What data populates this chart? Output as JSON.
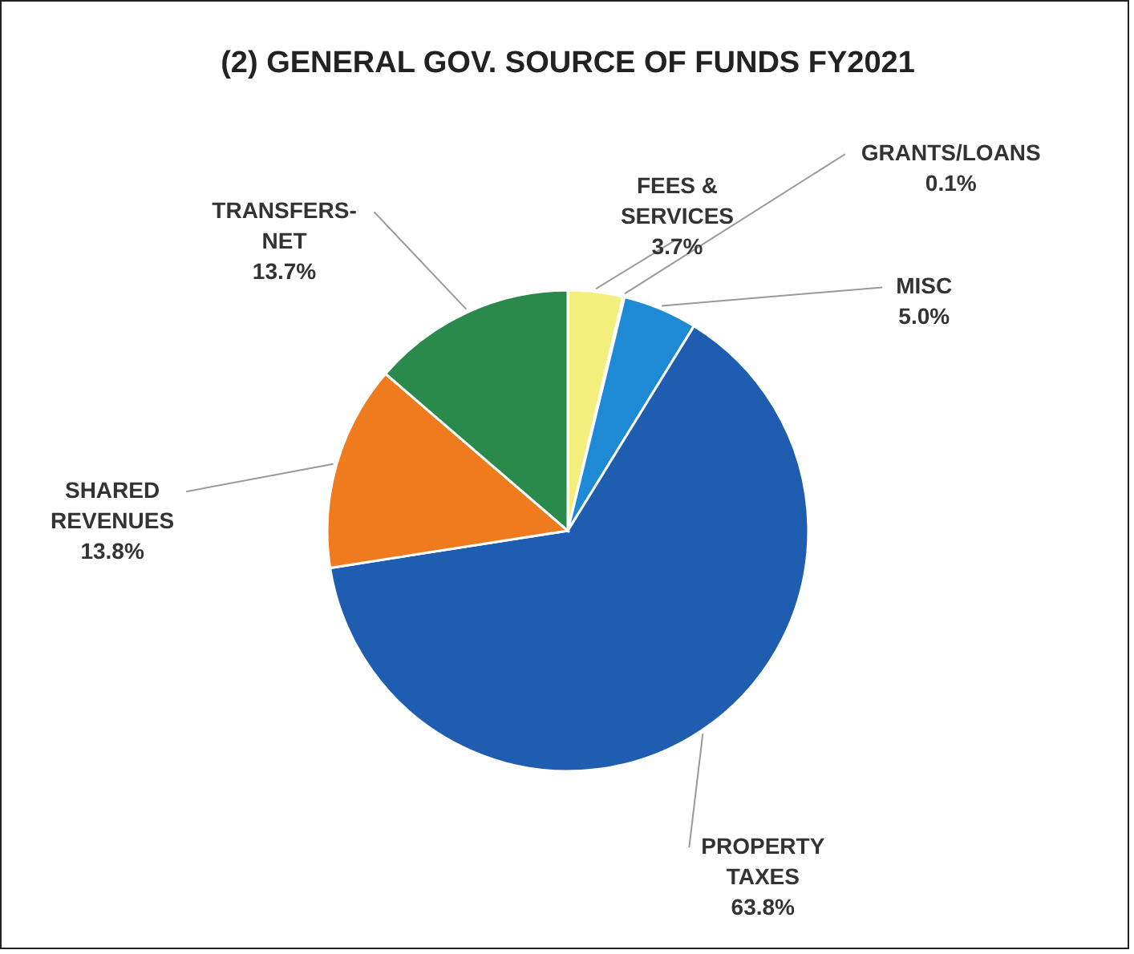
{
  "chart_data": {
    "type": "pie",
    "title": "(2) GENERAL GOV. SOURCE OF FUNDS FY2021",
    "categories": [
      "FEES & SERVICES",
      "GRANTS/LOANS",
      "MISC",
      "PROPERTY TAXES",
      "SHARED REVENUES",
      "TRANSFERS-NET"
    ],
    "values": [
      3.7,
      0.1,
      5.0,
      63.8,
      13.8,
      13.7
    ],
    "colors": [
      "#f4ef7c",
      "#a5a5a5",
      "#1e8ad6",
      "#1f5db0",
      "#f07b1f",
      "#2a8a4c"
    ],
    "value_labels": [
      "3.7%",
      "0.1%",
      "5.0%",
      "63.8%",
      "13.8%",
      "13.7%"
    ]
  }
}
